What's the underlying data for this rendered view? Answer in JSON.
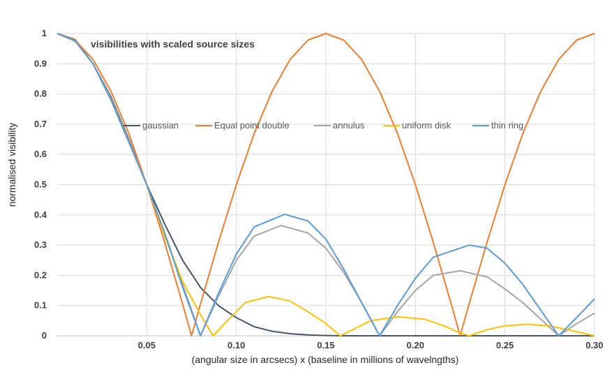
{
  "chart_data": {
    "type": "line",
    "title": "visibilities with scaled  source sizes",
    "xlabel": "(angular size in arcsecs) x (baseline in millions of wavelngths)",
    "ylabel": "normalised visibility",
    "xlim": [
      0,
      0.3
    ],
    "ylim": [
      0,
      1
    ],
    "x_ticks": [
      "0.05",
      "0.10",
      "0.15",
      "0.20",
      "0.25",
      "0.30"
    ],
    "x_tick_values": [
      0.05,
      0.1,
      0.15,
      0.2,
      0.25,
      0.3
    ],
    "y_ticks": [
      "0",
      "0.1",
      "0.2",
      "0.3",
      "0.4",
      "0.5",
      "0.6",
      "0.7",
      "0.8",
      "0.9",
      "1"
    ],
    "y_tick_values": [
      0,
      0.1,
      0.2,
      0.3,
      0.4,
      0.5,
      0.6,
      0.7,
      0.8,
      0.9,
      1
    ],
    "grid": true,
    "legend": "upper-middle",
    "series": [
      {
        "name": "gaussian",
        "color": "#44546A",
        "points": [
          [
            0,
            1
          ],
          [
            0.01,
            0.98
          ],
          [
            0.02,
            0.9
          ],
          [
            0.03,
            0.79
          ],
          [
            0.04,
            0.65
          ],
          [
            0.05,
            0.5
          ],
          [
            0.06,
            0.37
          ],
          [
            0.07,
            0.25
          ],
          [
            0.08,
            0.16
          ],
          [
            0.09,
            0.1
          ],
          [
            0.1,
            0.06
          ],
          [
            0.11,
            0.03
          ],
          [
            0.12,
            0.015
          ],
          [
            0.13,
            0.007
          ],
          [
            0.14,
            0.003
          ],
          [
            0.15,
            0.001
          ],
          [
            0.16,
            0
          ],
          [
            0.3,
            0
          ]
        ]
      },
      {
        "name": "Equal point double",
        "color": "#ED7D31",
        "points": [
          [
            0,
            1
          ],
          [
            0.01,
            0.978
          ],
          [
            0.02,
            0.914
          ],
          [
            0.03,
            0.809
          ],
          [
            0.04,
            0.669
          ],
          [
            0.05,
            0.5
          ],
          [
            0.06,
            0.309
          ],
          [
            0.07,
            0.105
          ],
          [
            0.075,
            0
          ],
          [
            0.08,
            0.105
          ],
          [
            0.09,
            0.309
          ],
          [
            0.1,
            0.5
          ],
          [
            0.11,
            0.669
          ],
          [
            0.12,
            0.809
          ],
          [
            0.13,
            0.914
          ],
          [
            0.14,
            0.978
          ],
          [
            0.15,
            1
          ],
          [
            0.16,
            0.978
          ],
          [
            0.17,
            0.914
          ],
          [
            0.18,
            0.809
          ],
          [
            0.19,
            0.669
          ],
          [
            0.2,
            0.5
          ],
          [
            0.21,
            0.309
          ],
          [
            0.22,
            0.105
          ],
          [
            0.225,
            0
          ],
          [
            0.23,
            0.105
          ],
          [
            0.24,
            0.309
          ],
          [
            0.25,
            0.5
          ],
          [
            0.26,
            0.669
          ],
          [
            0.27,
            0.809
          ],
          [
            0.28,
            0.914
          ],
          [
            0.29,
            0.978
          ],
          [
            0.3,
            1
          ]
        ]
      },
      {
        "name": "annulus",
        "color": "#A5A5A5",
        "points": [
          [
            0,
            1
          ],
          [
            0.01,
            0.975
          ],
          [
            0.02,
            0.9
          ],
          [
            0.03,
            0.785
          ],
          [
            0.04,
            0.645
          ],
          [
            0.05,
            0.5
          ],
          [
            0.06,
            0.34
          ],
          [
            0.07,
            0.17
          ],
          [
            0.08,
            0
          ],
          [
            0.09,
            0.13
          ],
          [
            0.1,
            0.25
          ],
          [
            0.11,
            0.33
          ],
          [
            0.125,
            0.365
          ],
          [
            0.14,
            0.34
          ],
          [
            0.15,
            0.29
          ],
          [
            0.16,
            0.21
          ],
          [
            0.17,
            0.11
          ],
          [
            0.18,
            0
          ],
          [
            0.19,
            0.08
          ],
          [
            0.2,
            0.15
          ],
          [
            0.21,
            0.2
          ],
          [
            0.225,
            0.215
          ],
          [
            0.24,
            0.195
          ],
          [
            0.25,
            0.155
          ],
          [
            0.26,
            0.11
          ],
          [
            0.27,
            0.055
          ],
          [
            0.28,
            0
          ],
          [
            0.29,
            0.04
          ],
          [
            0.3,
            0.075
          ]
        ]
      },
      {
        "name": "uniform disk",
        "color": "#FFC000",
        "points": [
          [
            0,
            1
          ],
          [
            0.01,
            0.975
          ],
          [
            0.02,
            0.9
          ],
          [
            0.03,
            0.78
          ],
          [
            0.04,
            0.64
          ],
          [
            0.05,
            0.5
          ],
          [
            0.06,
            0.33
          ],
          [
            0.07,
            0.18
          ],
          [
            0.08,
            0.07
          ],
          [
            0.087,
            0
          ],
          [
            0.095,
            0.05
          ],
          [
            0.105,
            0.11
          ],
          [
            0.118,
            0.13
          ],
          [
            0.13,
            0.115
          ],
          [
            0.14,
            0.08
          ],
          [
            0.15,
            0.04
          ],
          [
            0.158,
            0
          ],
          [
            0.165,
            0.02
          ],
          [
            0.175,
            0.05
          ],
          [
            0.19,
            0.063
          ],
          [
            0.205,
            0.055
          ],
          [
            0.215,
            0.035
          ],
          [
            0.225,
            0.01
          ],
          [
            0.23,
            0
          ],
          [
            0.24,
            0.02
          ],
          [
            0.25,
            0.033
          ],
          [
            0.262,
            0.038
          ],
          [
            0.275,
            0.033
          ],
          [
            0.285,
            0.02
          ],
          [
            0.3,
            0
          ]
        ]
      },
      {
        "name": "thin ring",
        "color": "#5B9BD5",
        "points": [
          [
            0,
            1
          ],
          [
            0.01,
            0.975
          ],
          [
            0.02,
            0.9
          ],
          [
            0.03,
            0.78
          ],
          [
            0.04,
            0.64
          ],
          [
            0.05,
            0.5
          ],
          [
            0.06,
            0.34
          ],
          [
            0.07,
            0.16
          ],
          [
            0.08,
            0
          ],
          [
            0.09,
            0.14
          ],
          [
            0.1,
            0.27
          ],
          [
            0.11,
            0.36
          ],
          [
            0.127,
            0.402
          ],
          [
            0.14,
            0.38
          ],
          [
            0.15,
            0.32
          ],
          [
            0.16,
            0.22
          ],
          [
            0.17,
            0.11
          ],
          [
            0.18,
            0
          ],
          [
            0.19,
            0.1
          ],
          [
            0.2,
            0.19
          ],
          [
            0.21,
            0.26
          ],
          [
            0.23,
            0.3
          ],
          [
            0.24,
            0.29
          ],
          [
            0.25,
            0.24
          ],
          [
            0.26,
            0.17
          ],
          [
            0.27,
            0.085
          ],
          [
            0.28,
            0
          ],
          [
            0.29,
            0.06
          ],
          [
            0.3,
            0.122
          ]
        ]
      }
    ]
  }
}
